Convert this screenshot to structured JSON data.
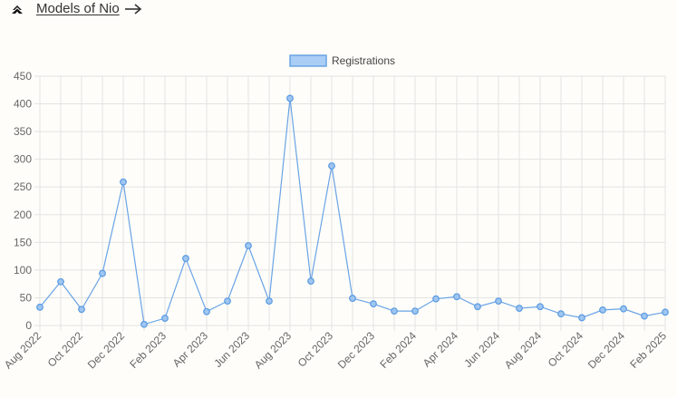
{
  "header": {
    "models_link_label": "Models of Nio",
    "brand_icon": "nio-logo-icon",
    "arrow_icon": "arrow-right-icon"
  },
  "colors": {
    "line": "#6aa4e6",
    "point_fill": "#9ec6f1",
    "point_stroke": "#5b9ae0",
    "legend_fill": "#a9cdf5",
    "legend_stroke": "#6aa4e6",
    "grid": "#e3e3e3",
    "tick_text": "#666666"
  },
  "chart_data": {
    "type": "line",
    "legend_position": "top-center",
    "grid": true,
    "ylim": [
      0,
      450
    ],
    "yticks": [
      0,
      50,
      100,
      150,
      200,
      250,
      300,
      350,
      400,
      450
    ],
    "x": [
      "Aug 2022",
      "Sep 2022",
      "Oct 2022",
      "Nov 2022",
      "Dec 2022",
      "Jan 2023",
      "Feb 2023",
      "Mar 2023",
      "Apr 2023",
      "May 2023",
      "Jun 2023",
      "Jul 2023",
      "Aug 2023",
      "Sep 2023",
      "Oct 2023",
      "Nov 2023",
      "Dec 2023",
      "Jan 2024",
      "Feb 2024",
      "Mar 2024",
      "Apr 2024",
      "May 2024",
      "Jun 2024",
      "Jul 2024",
      "Aug 2024",
      "Sep 2024",
      "Oct 2024",
      "Nov 2024",
      "Dec 2024",
      "Jan 2025",
      "Feb 2025"
    ],
    "xtick_labels": [
      "Aug 2022",
      "Oct 2022",
      "Dec 2022",
      "Feb 2023",
      "Apr 2023",
      "Jun 2023",
      "Aug 2023",
      "Oct 2023",
      "Dec 2023",
      "Feb 2024",
      "Apr 2024",
      "Jun 2024",
      "Aug 2024",
      "Oct 2024",
      "Dec 2024",
      "Feb 2025"
    ],
    "series": [
      {
        "name": "Registrations",
        "values": [
          33,
          79,
          29,
          94,
          259,
          2,
          13,
          121,
          25,
          44,
          144,
          44,
          410,
          80,
          288,
          49,
          39,
          26,
          26,
          48,
          52,
          34,
          44,
          31,
          34,
          21,
          14,
          28,
          30,
          17,
          24
        ]
      }
    ]
  }
}
